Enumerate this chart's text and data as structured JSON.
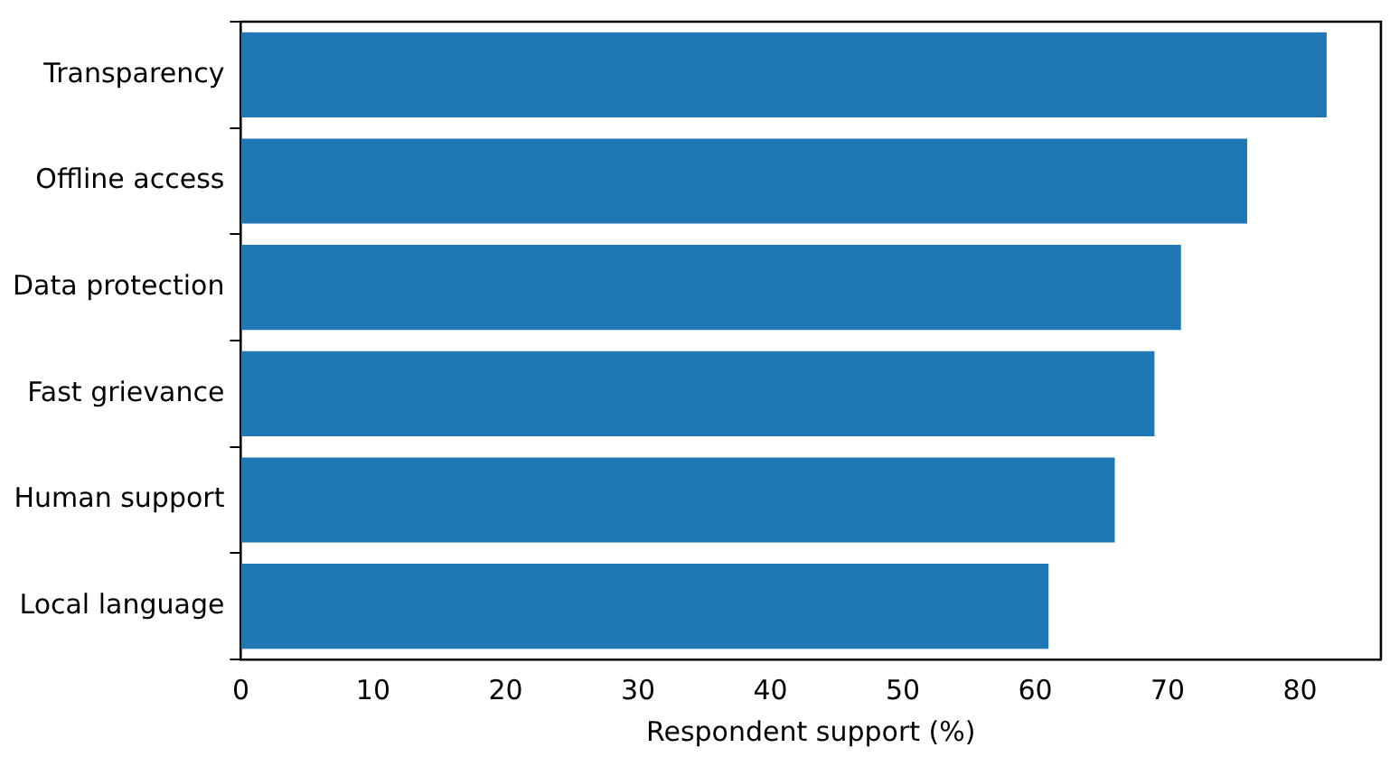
{
  "chart_data": {
    "type": "bar",
    "orientation": "horizontal",
    "xlabel": "Respondent support (%)",
    "categories": [
      "Transparency",
      "Offline access",
      "Data protection",
      "Fast grievance",
      "Human support",
      "Local language"
    ],
    "values": [
      82,
      76,
      71,
      69,
      66,
      61
    ],
    "color": "#1f77b4",
    "xlim": [
      0,
      86.1
    ],
    "xticks": [
      0,
      10,
      20,
      30,
      40,
      50,
      60,
      70,
      80
    ],
    "grid": false,
    "legend": false
  }
}
